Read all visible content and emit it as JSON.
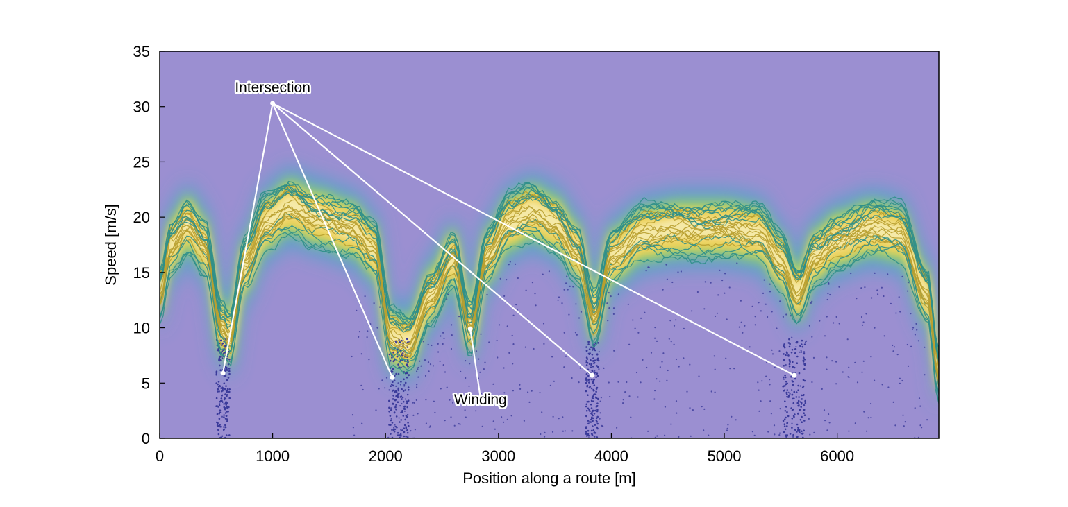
{
  "chart_data": {
    "type": "heatmap",
    "xlabel": "Position along a route [m]",
    "ylabel": "Speed [m/s]",
    "xlim": [
      0,
      6900
    ],
    "ylim": [
      0,
      35
    ],
    "x_ticks": [
      0,
      1000,
      2000,
      3000,
      4000,
      5000,
      6000
    ],
    "y_ticks": [
      0,
      5,
      10,
      15,
      20,
      25,
      30,
      35
    ],
    "grid": false,
    "colors": {
      "background": "#9b8fd1",
      "low_density": "#4fa6c8",
      "mid_density": "#9bd06a",
      "high_density": "#f2d25a",
      "peak_density": "#f6ecb0",
      "trace_dense": "#b9a030",
      "trace_sparse": "#2f8f8a",
      "stop_points": "#3a3a9a",
      "annotation": "#ffffff"
    },
    "speed_profile": {
      "x": [
        0,
        100,
        250,
        400,
        550,
        620,
        750,
        950,
        1150,
        1400,
        1700,
        1900,
        2050,
        2200,
        2400,
        2600,
        2750,
        2900,
        3100,
        3300,
        3500,
        3700,
        3850,
        4000,
        4300,
        4600,
        5000,
        5300,
        5500,
        5650,
        5800,
        6000,
        6300,
        6550,
        6800,
        6900
      ],
      "y": [
        13,
        17.5,
        19.5,
        17.5,
        10,
        9,
        15.5,
        19.5,
        21,
        20,
        19,
        17,
        9,
        8.5,
        13,
        16.5,
        10,
        16.5,
        19.5,
        20.5,
        19.5,
        17,
        11,
        16.5,
        18.5,
        19,
        19,
        18.5,
        16,
        13,
        16.5,
        18,
        19,
        18.5,
        13,
        6
      ]
    },
    "annotations": [
      {
        "text": "Intersection",
        "anchor": [
          1000,
          30.3
        ],
        "points": [
          [
            560,
            5.9
          ],
          [
            2060,
            5.5
          ],
          [
            3830,
            5.7
          ],
          [
            5620,
            5.7
          ]
        ]
      },
      {
        "text": "Winding",
        "anchor": [
          2840,
          3.7
        ],
        "points": [
          [
            2750,
            9.9
          ]
        ]
      }
    ]
  }
}
